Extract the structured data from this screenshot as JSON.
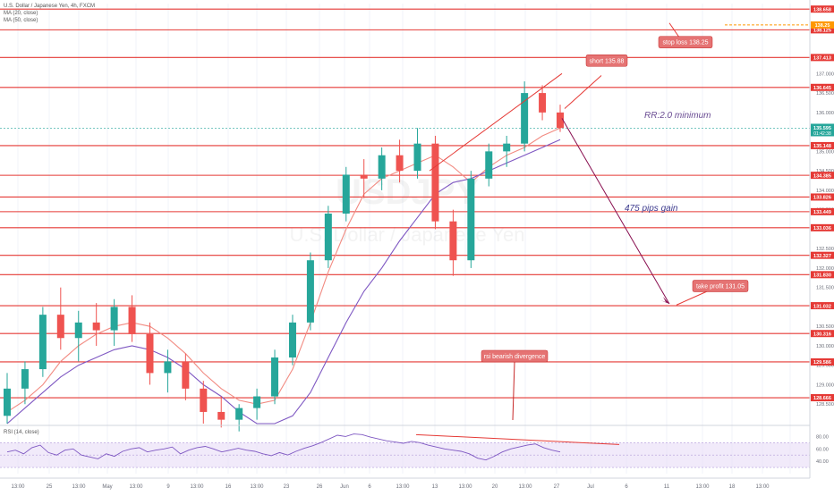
{
  "header": {
    "symbol_title": "U.S. Dollar / Japanese Yen, 4h, FXCM",
    "ma1": "MA (20, close)",
    "ma2": "MA (50, close)",
    "rsi_title": "RSI (14, close)"
  },
  "watermark": {
    "symbol": "USDJPY",
    "name": "U.S. Dollar / Japanese Yen"
  },
  "colors": {
    "up": "#26a69a",
    "down": "#ef5350",
    "ma20": "#f28b82",
    "ma50": "#7e57c2",
    "level": "#e53935",
    "annotation_bg": "#e57373",
    "rsi_band": "#e8dcf7",
    "rsi_line": "#7e57c2"
  },
  "chart_data": [
    {
      "type": "candlestick",
      "title": "U.S. Dollar / Japanese Yen, 4h, FXCM",
      "ylim": [
        128.0,
        138.8
      ],
      "price_axis_labels": [
        "137.000",
        "136.500",
        "136.000",
        "135.000",
        "134.500",
        "134.000",
        "133.500",
        "133.000",
        "132.500",
        "132.000",
        "131.500",
        "131.000",
        "130.500",
        "130.000",
        "129.500",
        "129.000",
        "128.500"
      ],
      "x_tick_labels": [
        "13:00",
        "25",
        "13:00",
        "May",
        "13:00",
        "9",
        "13:00",
        "16",
        "13:00",
        "23",
        "26",
        "Jun",
        "6",
        "13:00",
        "13",
        "13:00",
        "20",
        "13:00",
        "27",
        "Jul",
        "6",
        "11",
        "13:00",
        "18",
        "13:00"
      ],
      "levels": [
        "138.658",
        "138.125",
        "137.413",
        "136.645",
        "135.148",
        "134.385",
        "133.826",
        "133.449",
        "133.036",
        "132.327",
        "131.830",
        "131.032",
        "130.316",
        "129.586",
        "128.666"
      ],
      "current_price": "135.595",
      "countdown": "01:42:38",
      "stop_loss_level": "138.25",
      "annotations": {
        "stop_loss": "stop loss 138.25",
        "short": "short 135.88",
        "rr": "RR:2.0 minimum",
        "gain": "475 pips gain",
        "take_profit": "take profit 131.05",
        "rsi_divergence": "rsi bearish divergence"
      },
      "series": [
        {
          "name": "MA (20, close)",
          "values": [
            128.3,
            128.6,
            129.0,
            129.6,
            130.0,
            130.3,
            130.5,
            130.6,
            130.5,
            130.2,
            129.8,
            129.3,
            128.9,
            128.6,
            128.5,
            128.6,
            129.4,
            130.6,
            131.9,
            133.0,
            133.9,
            134.3,
            134.5,
            134.7,
            134.9,
            134.6,
            134.2,
            134.6,
            134.9,
            135.1,
            135.4,
            135.6
          ]
        },
        {
          "name": "MA (50, close)",
          "values": [
            128.0,
            128.4,
            128.8,
            129.2,
            129.5,
            129.7,
            129.9,
            130.0,
            129.9,
            129.7,
            129.4,
            129.0,
            128.7,
            128.3,
            128.0,
            128.0,
            128.2,
            128.8,
            129.7,
            130.6,
            131.4,
            132.0,
            132.7,
            133.3,
            133.9,
            134.2,
            134.3,
            134.5,
            134.7,
            134.9,
            135.1,
            135.3
          ]
        }
      ],
      "candles": [
        {
          "o": 128.2,
          "h": 129.3,
          "l": 128.0,
          "c": 128.9
        },
        {
          "o": 128.9,
          "h": 129.6,
          "l": 128.5,
          "c": 129.4
        },
        {
          "o": 129.4,
          "h": 131.0,
          "l": 129.2,
          "c": 130.8
        },
        {
          "o": 130.8,
          "h": 131.5,
          "l": 129.9,
          "c": 130.2
        },
        {
          "o": 130.2,
          "h": 130.9,
          "l": 129.6,
          "c": 130.6
        },
        {
          "o": 130.6,
          "h": 131.1,
          "l": 130.0,
          "c": 130.4
        },
        {
          "o": 130.4,
          "h": 131.2,
          "l": 130.0,
          "c": 131.0
        },
        {
          "o": 131.0,
          "h": 131.3,
          "l": 130.1,
          "c": 130.3
        },
        {
          "o": 130.3,
          "h": 130.6,
          "l": 129.0,
          "c": 129.3
        },
        {
          "o": 129.3,
          "h": 129.9,
          "l": 128.8,
          "c": 129.6
        },
        {
          "o": 129.6,
          "h": 129.8,
          "l": 128.6,
          "c": 128.9
        },
        {
          "o": 128.9,
          "h": 129.1,
          "l": 128.0,
          "c": 128.3
        },
        {
          "o": 128.3,
          "h": 128.7,
          "l": 127.9,
          "c": 128.1
        },
        {
          "o": 128.1,
          "h": 128.5,
          "l": 127.8,
          "c": 128.4
        },
        {
          "o": 128.4,
          "h": 128.9,
          "l": 128.1,
          "c": 128.7
        },
        {
          "o": 128.7,
          "h": 129.9,
          "l": 128.5,
          "c": 129.7
        },
        {
          "o": 129.7,
          "h": 130.8,
          "l": 129.5,
          "c": 130.6
        },
        {
          "o": 130.6,
          "h": 132.4,
          "l": 130.4,
          "c": 132.2
        },
        {
          "o": 132.2,
          "h": 133.6,
          "l": 132.0,
          "c": 133.4
        },
        {
          "o": 133.4,
          "h": 134.6,
          "l": 133.2,
          "c": 134.4
        },
        {
          "o": 134.4,
          "h": 134.8,
          "l": 133.8,
          "c": 134.3
        },
        {
          "o": 134.3,
          "h": 135.1,
          "l": 134.0,
          "c": 134.9
        },
        {
          "o": 134.9,
          "h": 135.3,
          "l": 134.2,
          "c": 134.5
        },
        {
          "o": 134.5,
          "h": 135.6,
          "l": 134.3,
          "c": 135.2
        },
        {
          "o": 135.2,
          "h": 135.4,
          "l": 133.0,
          "c": 133.2
        },
        {
          "o": 133.2,
          "h": 133.5,
          "l": 131.8,
          "c": 132.2
        },
        {
          "o": 132.2,
          "h": 134.5,
          "l": 132.0,
          "c": 134.3
        },
        {
          "o": 134.3,
          "h": 135.2,
          "l": 134.1,
          "c": 135.0
        },
        {
          "o": 135.0,
          "h": 135.4,
          "l": 134.6,
          "c": 135.2
        },
        {
          "o": 135.2,
          "h": 136.8,
          "l": 135.0,
          "c": 136.5
        },
        {
          "o": 136.5,
          "h": 136.7,
          "l": 135.8,
          "c": 136.0
        },
        {
          "o": 136.0,
          "h": 136.2,
          "l": 135.5,
          "c": 135.6
        }
      ]
    },
    {
      "type": "line",
      "title": "RSI (14, close)",
      "ylim": [
        20,
        95
      ],
      "y_tick_labels": [
        "80.00",
        "60.00",
        "40.00"
      ],
      "band": [
        30,
        70
      ],
      "series": [
        {
          "name": "RSI (14, close)",
          "values": [
            55,
            58,
            52,
            62,
            66,
            54,
            50,
            58,
            60,
            50,
            47,
            44,
            52,
            48,
            56,
            60,
            62,
            55,
            58,
            60,
            63,
            52,
            58,
            62,
            64,
            60,
            55,
            58,
            61,
            58,
            56,
            52,
            49,
            54,
            50,
            56,
            61,
            65,
            70,
            76,
            82,
            80,
            84,
            83,
            79,
            76,
            73,
            71,
            69,
            72,
            70,
            66,
            63,
            60,
            58,
            56,
            52,
            45,
            42,
            48,
            55,
            60,
            63,
            66,
            68,
            62,
            58,
            55
          ]
        }
      ]
    }
  ]
}
